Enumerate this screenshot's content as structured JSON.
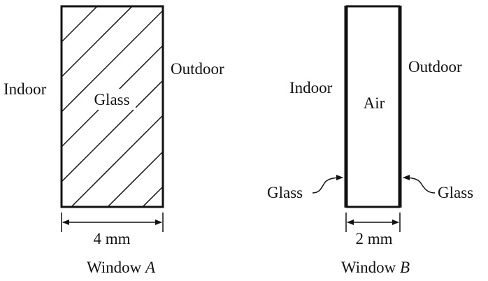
{
  "window_a": {
    "indoor_label": "Indoor",
    "outdoor_label": "Outdoor",
    "material_label": "Glass",
    "thickness_label": "4 mm",
    "caption_prefix": "Window ",
    "caption_letter": "A"
  },
  "window_b": {
    "indoor_label": "Indoor",
    "outdoor_label": "Outdoor",
    "gap_label": "Air",
    "left_pane_label": "Glass",
    "right_pane_label": "Glass",
    "thickness_label": "2 mm",
    "caption_prefix": "Window ",
    "caption_letter": "B"
  },
  "colors": {
    "ink": "#111111",
    "background": "#ffffff"
  }
}
